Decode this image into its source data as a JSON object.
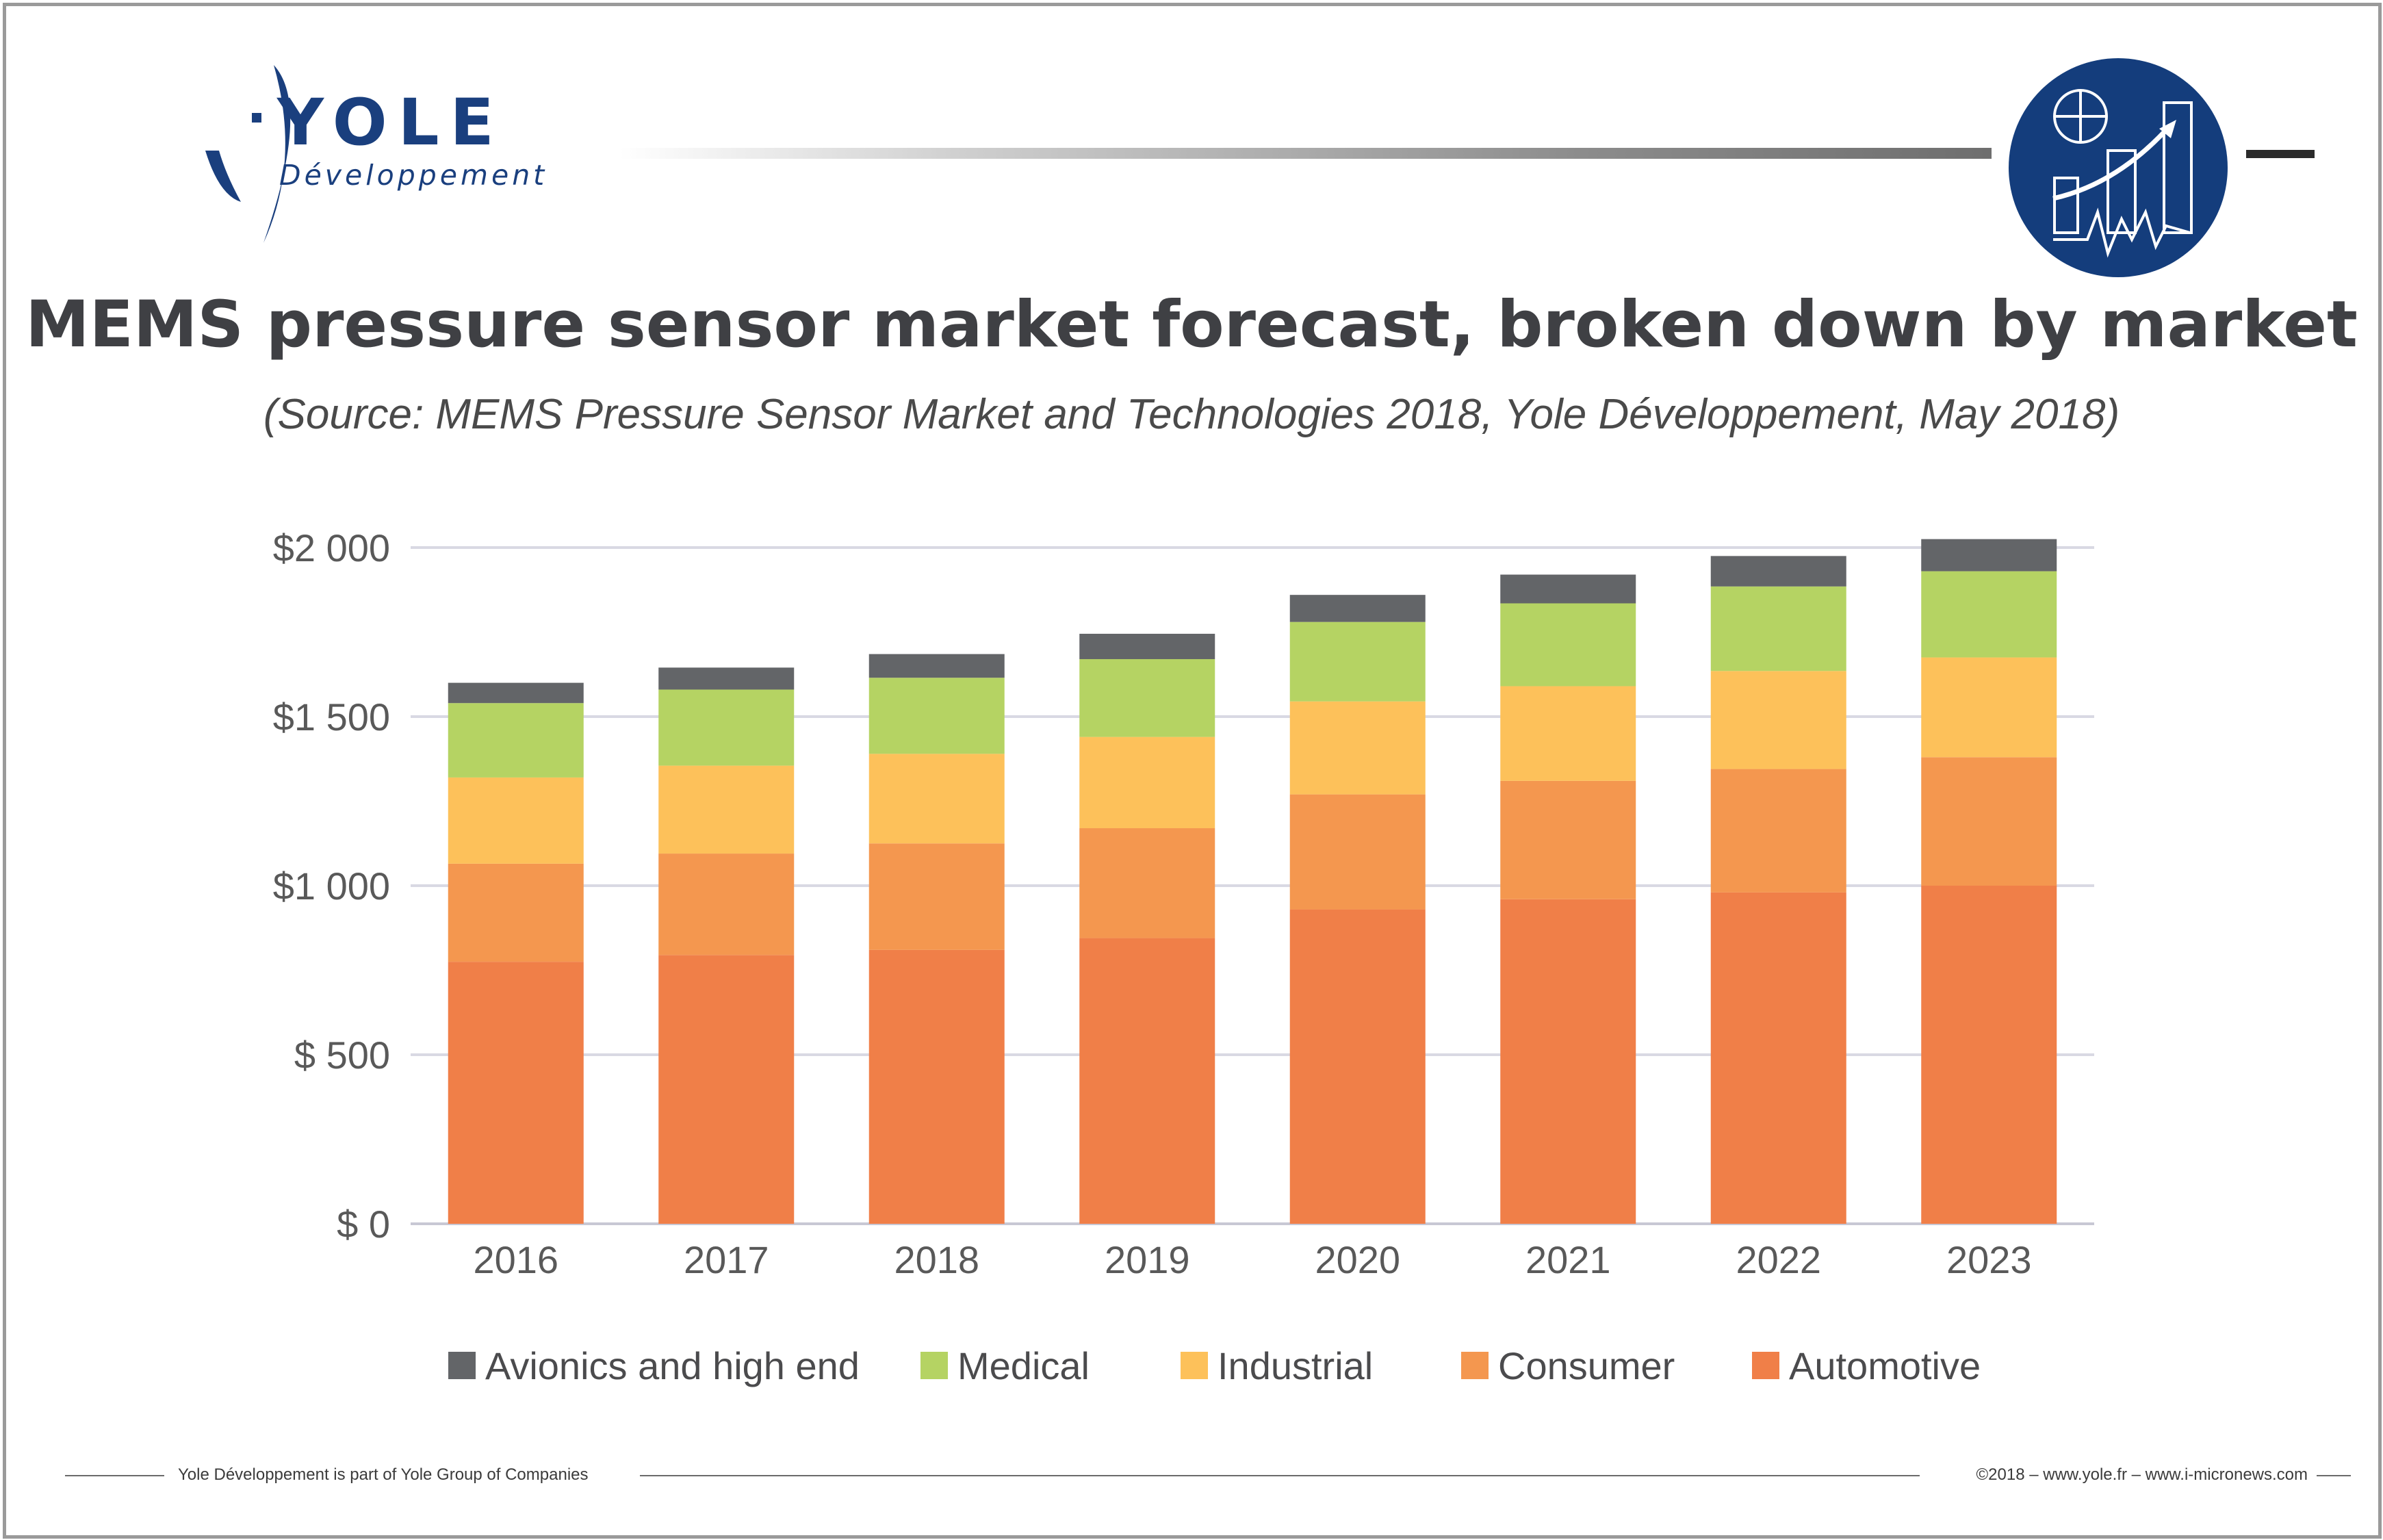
{
  "header": {
    "logo_word": "YOLE",
    "logo_sub": "Développement",
    "badge_icon": "market-chart-icon"
  },
  "title": "MEMS pressure sensor market forecast, broken down by market",
  "subtitle": "(Source: MEMS Pressure Sensor Market and Technologies 2018, Yole Développement, May 2018)",
  "colors": {
    "brand_blue": "#1a3f7e",
    "badge_blue": "#143d7c",
    "gridline": "#d9d9e3",
    "axis_text": "#595959"
  },
  "chart_data": {
    "type": "bar",
    "stacked": true,
    "categories": [
      "2016",
      "2017",
      "2018",
      "2019",
      "2020",
      "2021",
      "2022",
      "2023"
    ],
    "series": [
      {
        "name": "Automotive",
        "color": "#f07f48",
        "values": [
          775,
          795,
          810,
          845,
          930,
          960,
          980,
          1000
        ]
      },
      {
        "name": "Consumer",
        "color": "#f4974f",
        "values": [
          290,
          300,
          315,
          325,
          340,
          350,
          365,
          380
        ]
      },
      {
        "name": "Industrial",
        "color": "#fdc15a",
        "values": [
          255,
          260,
          265,
          270,
          275,
          280,
          290,
          295
        ]
      },
      {
        "name": "Medical",
        "color": "#b5d363",
        "values": [
          220,
          225,
          225,
          230,
          235,
          245,
          250,
          255
        ]
      },
      {
        "name": "Avionics and high end",
        "color": "#636568",
        "values": [
          60,
          65,
          70,
          75,
          80,
          85,
          90,
          95
        ]
      }
    ],
    "yticks": [
      "$ 0",
      "$ 500",
      "$1 000",
      "$1 500",
      "$2 000"
    ],
    "ylim": [
      0,
      2000
    ],
    "grid": true,
    "legend_position": "bottom"
  },
  "footer": {
    "left": "Yole Développement is part of Yole Group of Companies",
    "right": "©2018 – www.yole.fr – www.i-micronews.com"
  }
}
